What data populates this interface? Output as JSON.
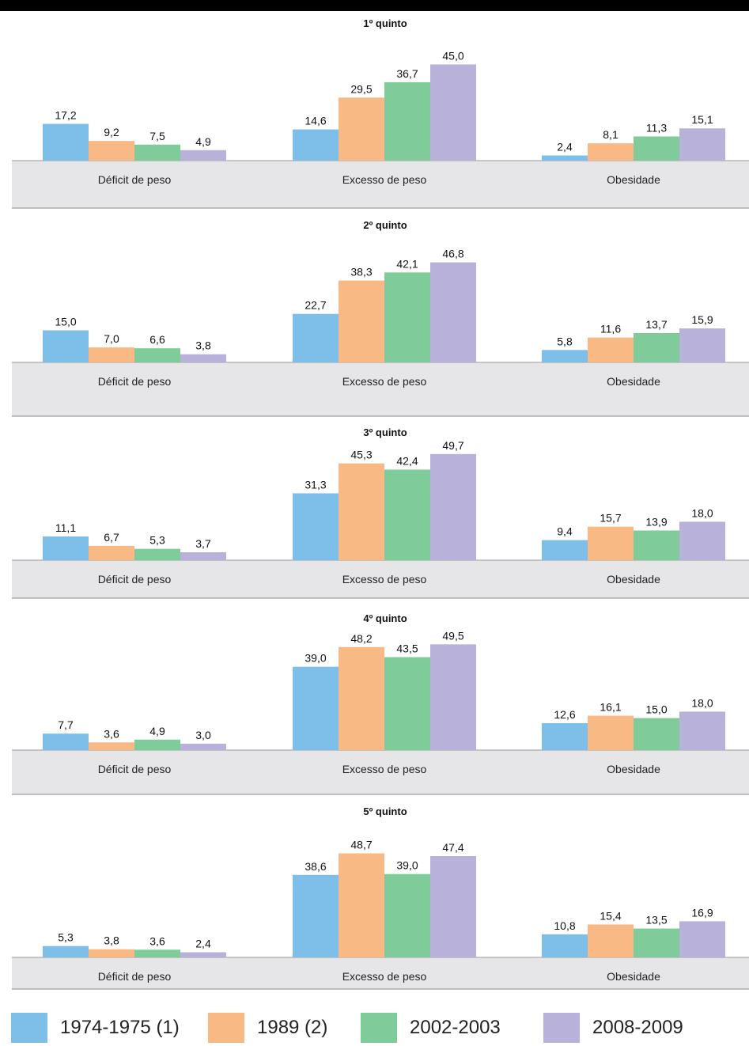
{
  "colors": {
    "1974-1975 (1)": "#7dbfe8",
    "1989 (2)": "#f9b985",
    "2002-2003": "#7fcb99",
    "2008-2009": "#b8b2da",
    "band": "#e6e6e8"
  },
  "legend": [
    {
      "label": "1974-1975 (1)",
      "color": "#7dbfe8"
    },
    {
      "label": "1989 (2)",
      "color": "#f9b985"
    },
    {
      "label": "2002-2003",
      "color": "#7fcb99"
    },
    {
      "label": "2008-2009",
      "color": "#b8b2da"
    }
  ],
  "chart_data": {
    "type": "bar",
    "series_names": [
      "1974-1975 (1)",
      "1989 (2)",
      "2002-2003",
      "2008-2009"
    ],
    "categories": [
      "Déficit de peso",
      "Excesso de peso",
      "Obesidade"
    ],
    "panels": [
      {
        "title": "1º quinto",
        "groups": [
          {
            "category": "Déficit de peso",
            "values": [
              17.2,
              9.2,
              7.5,
              4.9
            ],
            "labels": [
              "17,2",
              "9,2",
              "7,5",
              "4,9"
            ]
          },
          {
            "category": "Excesso de peso",
            "values": [
              14.6,
              29.5,
              36.7,
              45.0
            ],
            "labels": [
              "14,6",
              "29,5",
              "36,7",
              "45,0"
            ]
          },
          {
            "category": "Obesidade",
            "values": [
              2.4,
              8.1,
              11.3,
              15.1
            ],
            "labels": [
              "2,4",
              "8,1",
              "11,3",
              "15,1"
            ]
          }
        ]
      },
      {
        "title": "2º quinto",
        "groups": [
          {
            "category": "Déficit de peso",
            "values": [
              15.0,
              7.0,
              6.6,
              3.8
            ],
            "labels": [
              "15,0",
              "7,0",
              "6,6",
              "3,8"
            ]
          },
          {
            "category": "Excesso de peso",
            "values": [
              22.7,
              38.3,
              42.1,
              46.8
            ],
            "labels": [
              "22,7",
              "38,3",
              "42,1",
              "46,8"
            ]
          },
          {
            "category": "Obesidade",
            "values": [
              5.8,
              11.6,
              13.7,
              15.9
            ],
            "labels": [
              "5,8",
              "11,6",
              "13,7",
              "15,9"
            ]
          }
        ]
      },
      {
        "title": "3º quinto",
        "groups": [
          {
            "category": "Déficit de peso",
            "values": [
              11.1,
              6.7,
              5.3,
              3.7
            ],
            "labels": [
              "11,1",
              "6,7",
              "5,3",
              "3,7"
            ]
          },
          {
            "category": "Excesso de peso",
            "values": [
              31.3,
              45.3,
              42.4,
              49.7
            ],
            "labels": [
              "31,3",
              "45,3",
              "42,4",
              "49,7"
            ]
          },
          {
            "category": "Obesidade",
            "values": [
              9.4,
              15.7,
              13.9,
              18.0
            ],
            "labels": [
              "9,4",
              "15,7",
              "13,9",
              "18,0"
            ]
          }
        ]
      },
      {
        "title": "4º quinto",
        "groups": [
          {
            "category": "Déficit de peso",
            "values": [
              7.7,
              3.6,
              4.9,
              3.0
            ],
            "labels": [
              "7,7",
              "3,6",
              "4,9",
              "3,0"
            ]
          },
          {
            "category": "Excesso de peso",
            "values": [
              39.0,
              48.2,
              43.5,
              49.5
            ],
            "labels": [
              "39,0",
              "48,2",
              "43,5",
              "49,5"
            ]
          },
          {
            "category": "Obesidade",
            "values": [
              12.6,
              16.1,
              15.0,
              18.0
            ],
            "labels": [
              "12,6",
              "16,1",
              "15,0",
              "18,0"
            ]
          }
        ]
      },
      {
        "title": "5º quinto",
        "groups": [
          {
            "category": "Déficit de peso",
            "values": [
              5.3,
              3.8,
              3.6,
              2.4
            ],
            "labels": [
              "5,3",
              "3,8",
              "3,6",
              "2,4"
            ]
          },
          {
            "category": "Excesso de peso",
            "values": [
              38.6,
              48.7,
              39.0,
              47.4
            ],
            "labels": [
              "38,6",
              "48,7",
              "39,0",
              "47,4"
            ]
          },
          {
            "category": "Obesidade",
            "values": [
              10.8,
              15.4,
              13.5,
              16.9
            ],
            "labels": [
              "10,8",
              "15,4",
              "13,5",
              "16,9"
            ]
          }
        ]
      }
    ]
  }
}
